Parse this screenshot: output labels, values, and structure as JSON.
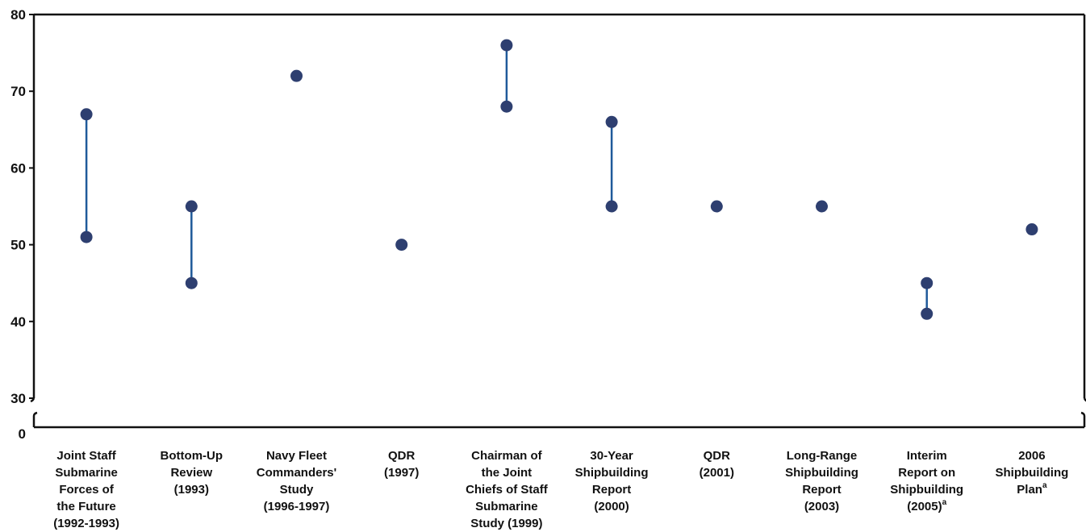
{
  "chart_data": {
    "type": "range-dot",
    "title": "",
    "xlabel": "",
    "ylabel": "",
    "ylim": [
      30,
      80
    ],
    "axis_break": {
      "from": 0,
      "to": 30
    },
    "yticks": [
      30,
      40,
      50,
      60,
      70,
      80
    ],
    "ytick_zero_label": "0",
    "grid": false,
    "colors": {
      "marker": "#2e3f70",
      "range_line": "#1f5a9a",
      "axis": "#111111"
    },
    "categories": [
      {
        "label_lines": [
          "Joint Staff",
          "Submarine",
          "Forces of",
          "the Future",
          "(1992-1993)"
        ],
        "values": [
          51,
          67
        ]
      },
      {
        "label_lines": [
          "Bottom-Up",
          "Review",
          "(1993)"
        ],
        "values": [
          45,
          55
        ]
      },
      {
        "label_lines": [
          "Navy Fleet",
          "Commanders'",
          "Study",
          "(1996-1997)"
        ],
        "values": [
          72
        ]
      },
      {
        "label_lines": [
          "QDR",
          "(1997)"
        ],
        "values": [
          50
        ]
      },
      {
        "label_lines": [
          "Chairman of",
          "the Joint",
          "Chiefs of Staff",
          "Submarine",
          "Study (1999)"
        ],
        "values": [
          68,
          76
        ]
      },
      {
        "label_lines": [
          "30-Year",
          "Shipbuilding",
          "Report",
          "(2000)"
        ],
        "values": [
          55,
          66
        ]
      },
      {
        "label_lines": [
          "QDR",
          "(2001)"
        ],
        "values": [
          55
        ]
      },
      {
        "label_lines": [
          "Long-Range",
          "Shipbuilding",
          "Report",
          "(2003)"
        ],
        "values": [
          55
        ]
      },
      {
        "label_lines": [
          "Interim",
          "Report on",
          "Shipbuilding",
          "(2005)"
        ],
        "superscript_line": 3,
        "superscript": "a",
        "values": [
          41,
          45
        ]
      },
      {
        "label_lines": [
          "2006",
          "Shipbuilding",
          "Plan"
        ],
        "superscript_line": 2,
        "superscript": "a",
        "values": [
          52
        ]
      }
    ]
  }
}
